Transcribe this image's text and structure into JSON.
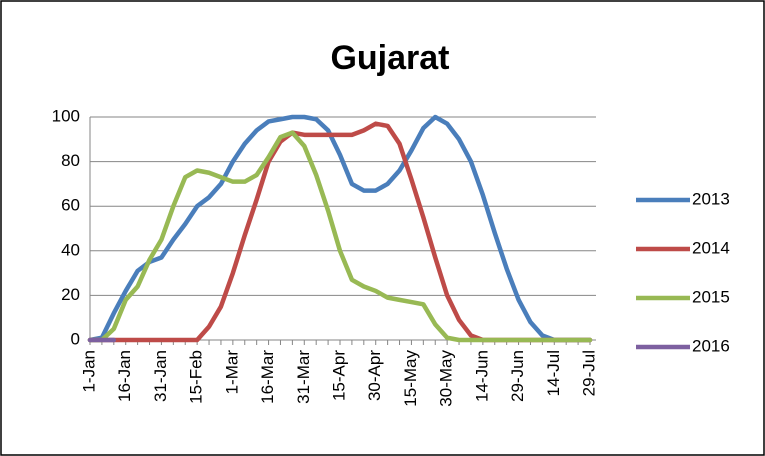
{
  "chart_data": {
    "type": "line",
    "title": "Gujarat",
    "categories": [
      "1-Jan",
      null,
      null,
      "16-Jan",
      null,
      null,
      "31-Jan",
      null,
      null,
      "15-Feb",
      null,
      null,
      "1-Mar",
      null,
      null,
      "16-Mar",
      null,
      null,
      "31-Mar",
      null,
      null,
      "15-Apr",
      null,
      null,
      "30-Apr",
      null,
      null,
      "15-May",
      null,
      null,
      "30-May",
      null,
      null,
      "14-Jun",
      null,
      null,
      "29-Jun",
      null,
      null,
      "14-Jul",
      null,
      null,
      "29-Jul"
    ],
    "series": [
      {
        "name": "2013",
        "color": "#4a7ebb",
        "values": [
          0,
          1,
          12,
          22,
          31,
          35,
          37,
          45,
          52,
          60,
          64,
          70,
          80,
          88,
          94,
          98,
          99,
          100,
          100,
          99,
          94,
          83,
          70,
          67,
          67,
          70,
          76,
          85,
          95,
          100,
          97,
          90,
          80,
          65,
          48,
          32,
          18,
          8,
          2,
          0,
          0,
          0,
          0
        ]
      },
      {
        "name": "2014",
        "color": "#be4b48",
        "values": [
          0,
          0,
          0,
          0,
          0,
          0,
          0,
          0,
          0,
          0,
          6,
          15,
          30,
          47,
          63,
          80,
          89,
          93,
          92,
          92,
          92,
          92,
          92,
          94,
          97,
          96,
          88,
          72,
          55,
          37,
          20,
          9,
          2,
          0,
          0,
          0,
          0,
          0,
          0,
          0,
          0,
          0,
          0
        ]
      },
      {
        "name": "2015",
        "color": "#98b954",
        "values": [
          0,
          0,
          5,
          18,
          24,
          36,
          45,
          60,
          73,
          76,
          75,
          73,
          71,
          71,
          74,
          82,
          91,
          93,
          87,
          74,
          58,
          40,
          27,
          24,
          22,
          19,
          18,
          17,
          16,
          7,
          1,
          0,
          0,
          0,
          0,
          0,
          0,
          0,
          0,
          0,
          0,
          0,
          0
        ]
      },
      {
        "name": "2016",
        "color": "#7d60a0",
        "values": [
          0,
          0,
          0,
          null,
          null,
          null,
          null,
          null,
          null,
          null,
          null,
          null,
          null,
          null,
          null,
          null,
          null,
          null,
          null,
          null,
          null,
          null,
          null,
          null,
          null,
          null,
          null,
          null,
          null,
          null,
          null,
          null,
          null,
          null,
          null,
          null,
          null,
          null,
          null,
          null,
          null,
          null,
          null
        ]
      }
    ],
    "ylim": [
      0,
      100
    ],
    "yticks": [
      0,
      20,
      40,
      60,
      80,
      100
    ],
    "grid": true,
    "legend": "right"
  }
}
